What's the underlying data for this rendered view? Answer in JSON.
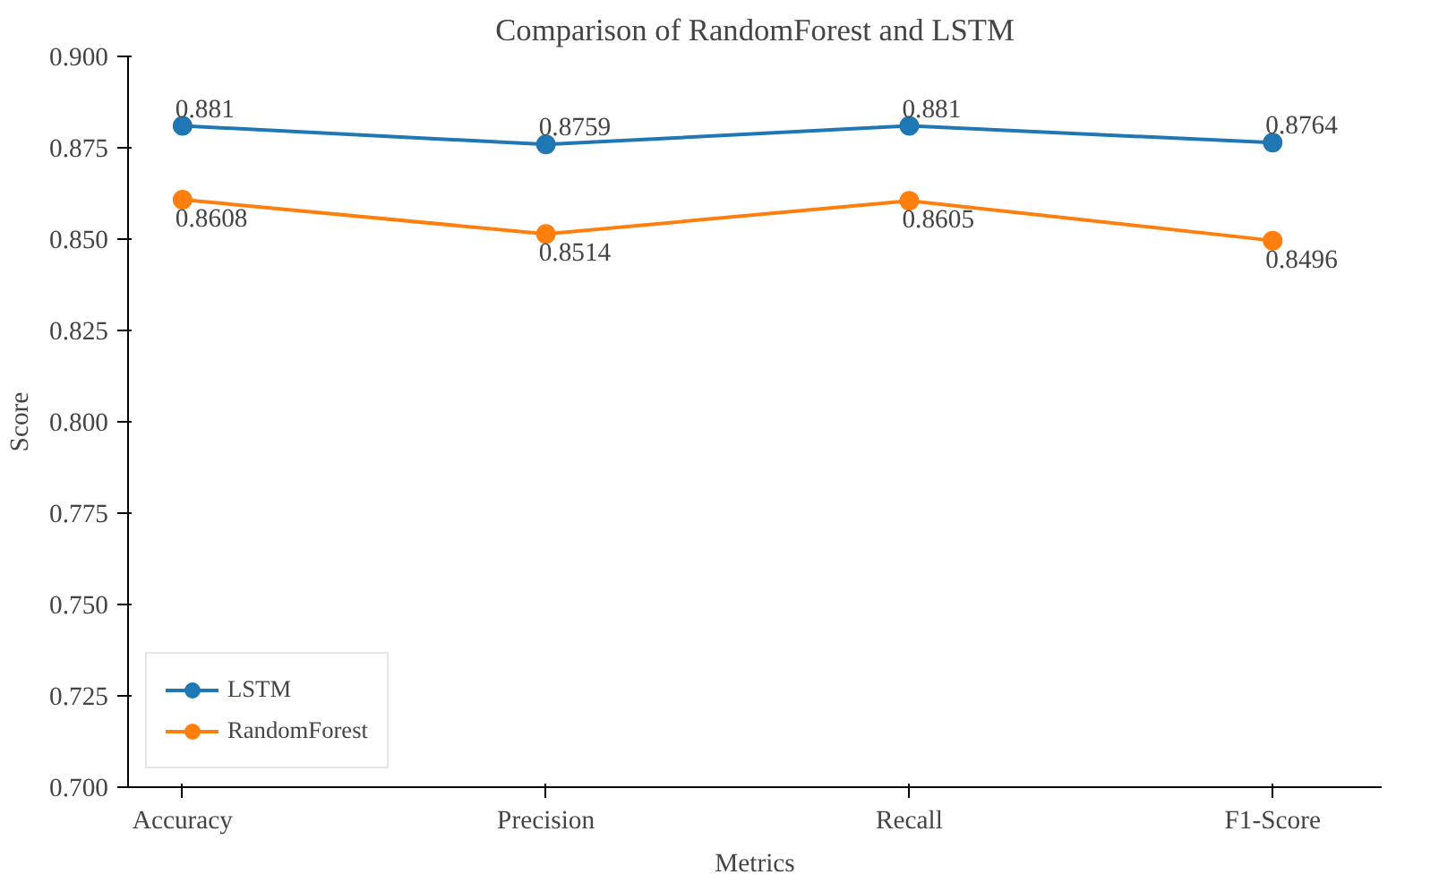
{
  "chart_data": {
    "type": "line",
    "title": "Comparison of RandomForest and LSTM",
    "xlabel": "Metrics",
    "ylabel": "Score",
    "categories": [
      "Accuracy",
      "Precision",
      "Recall",
      "F1-Score"
    ],
    "series": [
      {
        "name": "LSTM",
        "color": "#1f77b4",
        "values": [
          0.881,
          0.8759,
          0.881,
          0.8764
        ]
      },
      {
        "name": "RandomForest",
        "color": "#ff7f0e",
        "values": [
          0.8608,
          0.8514,
          0.8605,
          0.8496
        ]
      }
    ],
    "ylim": [
      0.7,
      0.9
    ],
    "yticks": [
      {
        "value": 0.7,
        "label": "0.700"
      },
      {
        "value": 0.725,
        "label": "0.725"
      },
      {
        "value": 0.75,
        "label": "0.750"
      },
      {
        "value": 0.775,
        "label": "0.775"
      },
      {
        "value": 0.8,
        "label": "0.800"
      },
      {
        "value": 0.825,
        "label": "0.825"
      },
      {
        "value": 0.85,
        "label": "0.850"
      },
      {
        "value": 0.875,
        "label": "0.875"
      },
      {
        "value": 0.9,
        "label": "0.900"
      }
    ],
    "data_labels": true,
    "legend": "bottom left",
    "marker": "circle",
    "line_style": "solid"
  }
}
